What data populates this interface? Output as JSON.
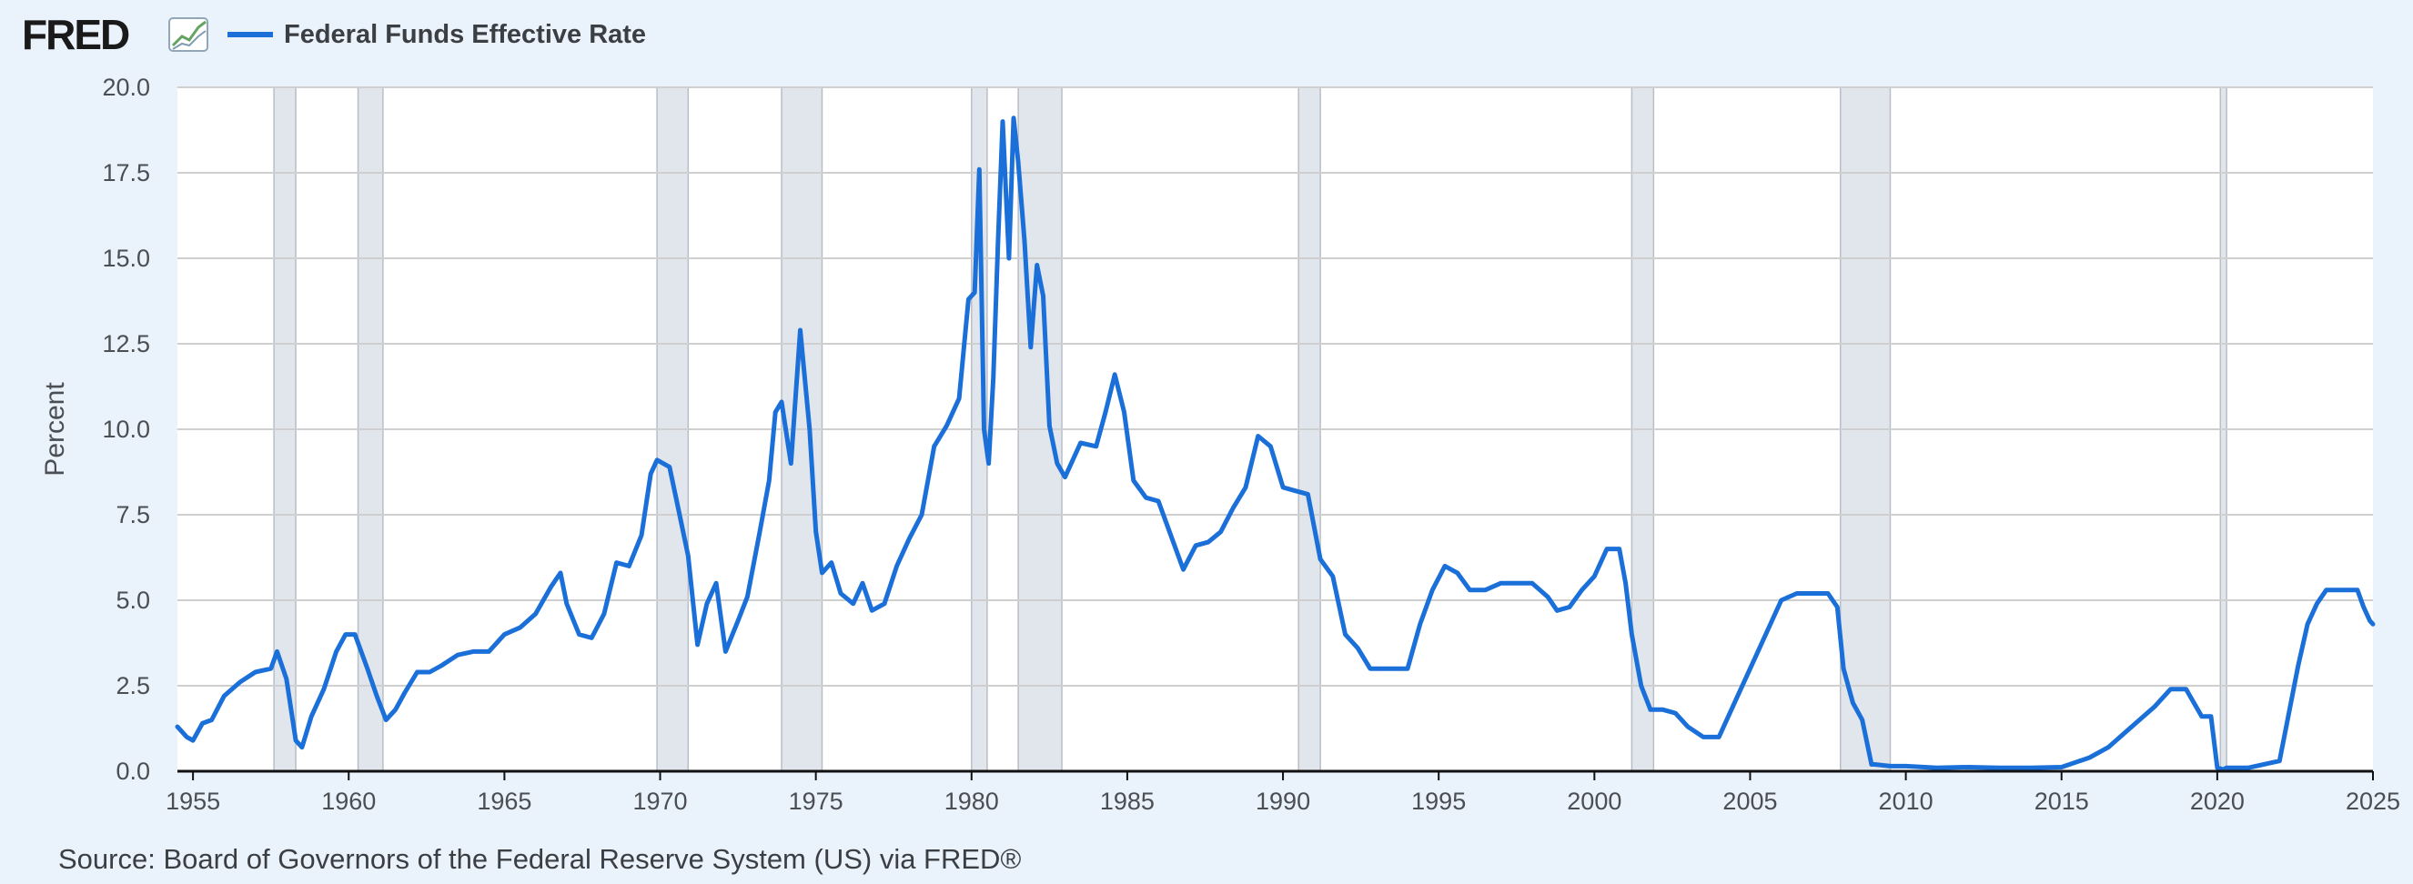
{
  "logo": {
    "text": "FRED",
    "reg": "."
  },
  "legend": {
    "label": "Federal Funds Effective Rate",
    "color": "#1a6fd8"
  },
  "source": "Source: Board of Governors of the Federal Reserve System (US) via FRED®",
  "colors": {
    "line": "#1a6fd8",
    "recession": "#e1e5ec",
    "grid": "#cfcfcf",
    "background": "#eaf2fb",
    "plot": "#ffffff"
  },
  "chart_data": {
    "type": "line",
    "title": "",
    "xlabel": "",
    "ylabel": "Percent",
    "xlim": [
      1954.5,
      2025.0
    ],
    "ylim": [
      0,
      20
    ],
    "grid": true,
    "legend_position": "top-left",
    "y_ticks": [
      0.0,
      2.5,
      5.0,
      7.5,
      10.0,
      12.5,
      15.0,
      17.5,
      20.0
    ],
    "y_tick_labels": [
      "0.0",
      "2.5",
      "5.0",
      "7.5",
      "10.0",
      "12.5",
      "15.0",
      "17.5",
      "20.0"
    ],
    "x_ticks": [
      1955,
      1960,
      1965,
      1970,
      1975,
      1980,
      1985,
      1990,
      1995,
      2000,
      2005,
      2010,
      2015,
      2020,
      2025
    ],
    "x_tick_labels": [
      "1955",
      "1960",
      "1965",
      "1970",
      "1975",
      "1980",
      "1985",
      "1990",
      "1995",
      "2000",
      "2005",
      "2010",
      "2015",
      "2020",
      "2025"
    ],
    "recessions": [
      [
        1957.6,
        1958.3
      ],
      [
        1960.3,
        1961.1
      ],
      [
        1969.9,
        1970.9
      ],
      [
        1973.9,
        1975.2
      ],
      [
        1980.0,
        1980.5
      ],
      [
        1981.5,
        1982.9
      ],
      [
        1990.5,
        1991.2
      ],
      [
        2001.2,
        2001.9
      ],
      [
        2007.9,
        2009.5
      ],
      [
        2020.1,
        2020.3
      ]
    ],
    "series": [
      {
        "name": "Federal Funds Effective Rate",
        "x": [
          1954.5,
          1954.8,
          1955.0,
          1955.3,
          1955.6,
          1956.0,
          1956.5,
          1957.0,
          1957.5,
          1957.7,
          1958.0,
          1958.3,
          1958.5,
          1958.8,
          1959.2,
          1959.6,
          1959.9,
          1960.2,
          1960.6,
          1960.9,
          1961.2,
          1961.5,
          1961.8,
          1962.2,
          1962.6,
          1963.0,
          1963.5,
          1964.0,
          1964.5,
          1965.0,
          1965.5,
          1966.0,
          1966.5,
          1966.8,
          1967.0,
          1967.4,
          1967.8,
          1968.2,
          1968.6,
          1969.0,
          1969.4,
          1969.7,
          1969.9,
          1970.3,
          1970.6,
          1970.9,
          1971.2,
          1971.5,
          1971.8,
          1972.1,
          1972.5,
          1972.8,
          1973.2,
          1973.5,
          1973.7,
          1973.9,
          1974.2,
          1974.5,
          1974.8,
          1975.0,
          1975.2,
          1975.5,
          1975.8,
          1976.2,
          1976.5,
          1976.8,
          1977.2,
          1977.6,
          1978.0,
          1978.4,
          1978.8,
          1979.2,
          1979.6,
          1979.9,
          1980.1,
          1980.25,
          1980.4,
          1980.55,
          1980.7,
          1980.85,
          1981.0,
          1981.2,
          1981.35,
          1981.5,
          1981.7,
          1981.9,
          1982.1,
          1982.3,
          1982.5,
          1982.75,
          1983.0,
          1983.5,
          1984.0,
          1984.3,
          1984.6,
          1984.9,
          1985.2,
          1985.6,
          1986.0,
          1986.4,
          1986.8,
          1987.2,
          1987.6,
          1988.0,
          1988.4,
          1988.8,
          1989.2,
          1989.6,
          1990.0,
          1990.4,
          1990.8,
          1991.2,
          1991.6,
          1992.0,
          1992.4,
          1992.8,
          1993.2,
          1993.6,
          1994.0,
          1994.4,
          1994.8,
          1995.2,
          1995.6,
          1996.0,
          1996.5,
          1997.0,
          1997.5,
          1998.0,
          1998.5,
          1998.8,
          1999.2,
          1999.6,
          2000.0,
          2000.4,
          2000.8,
          2001.0,
          2001.2,
          2001.5,
          2001.8,
          2002.2,
          2002.6,
          2003.0,
          2003.5,
          2004.0,
          2004.5,
          2005.0,
          2005.5,
          2006.0,
          2006.5,
          2007.0,
          2007.5,
          2007.8,
          2008.0,
          2008.3,
          2008.6,
          2008.9,
          2009.0,
          2009.5,
          2010.0,
          2011.0,
          2012.0,
          2013.0,
          2014.0,
          2015.0,
          2015.9,
          2016.5,
          2017.0,
          2017.5,
          2018.0,
          2018.5,
          2019.0,
          2019.5,
          2019.8,
          2020.0,
          2020.2,
          2020.3,
          2021.0,
          2022.0,
          2022.3,
          2022.6,
          2022.9,
          2023.2,
          2023.5,
          2024.0,
          2024.5,
          2024.7,
          2024.9,
          2025.0
        ],
        "values": [
          1.3,
          1.0,
          0.9,
          1.4,
          1.5,
          2.2,
          2.6,
          2.9,
          3.0,
          3.5,
          2.7,
          0.9,
          0.7,
          1.6,
          2.4,
          3.5,
          4.0,
          4.0,
          3.0,
          2.2,
          1.5,
          1.8,
          2.3,
          2.9,
          2.9,
          3.1,
          3.4,
          3.5,
          3.5,
          4.0,
          4.2,
          4.6,
          5.4,
          5.8,
          4.9,
          4.0,
          3.9,
          4.6,
          6.1,
          6.0,
          6.9,
          8.7,
          9.1,
          8.9,
          7.6,
          6.3,
          3.7,
          4.9,
          5.5,
          3.5,
          4.4,
          5.1,
          7.0,
          8.5,
          10.5,
          10.8,
          9.0,
          12.9,
          10.0,
          7.0,
          5.8,
          6.1,
          5.2,
          4.9,
          5.5,
          4.7,
          4.9,
          6.0,
          6.8,
          7.5,
          9.5,
          10.1,
          10.9,
          13.8,
          14.0,
          17.6,
          10.0,
          9.0,
          11.5,
          15.5,
          19.0,
          15.0,
          19.1,
          17.8,
          15.5,
          12.4,
          14.8,
          13.9,
          10.1,
          9.0,
          8.6,
          9.6,
          9.5,
          10.5,
          11.6,
          10.5,
          8.5,
          8.0,
          7.9,
          6.9,
          5.9,
          6.6,
          6.7,
          7.0,
          7.7,
          8.3,
          9.8,
          9.5,
          8.3,
          8.2,
          8.1,
          6.2,
          5.7,
          4.0,
          3.6,
          3.0,
          3.0,
          3.0,
          3.0,
          4.3,
          5.3,
          6.0,
          5.8,
          5.3,
          5.3,
          5.5,
          5.5,
          5.5,
          5.1,
          4.7,
          4.8,
          5.3,
          5.7,
          6.5,
          6.5,
          5.5,
          4.0,
          2.5,
          1.8,
          1.8,
          1.7,
          1.3,
          1.0,
          1.0,
          2.0,
          3.0,
          4.0,
          5.0,
          5.2,
          5.2,
          5.2,
          4.8,
          3.0,
          2.0,
          1.5,
          0.2,
          0.2,
          0.15,
          0.15,
          0.1,
          0.12,
          0.1,
          0.1,
          0.12,
          0.4,
          0.7,
          1.1,
          1.5,
          1.9,
          2.4,
          2.4,
          1.6,
          1.6,
          0.1,
          0.05,
          0.1,
          0.1,
          0.3,
          1.7,
          3.1,
          4.3,
          4.9,
          5.3,
          5.3,
          5.3,
          4.8,
          4.4,
          4.3
        ]
      }
    ]
  }
}
